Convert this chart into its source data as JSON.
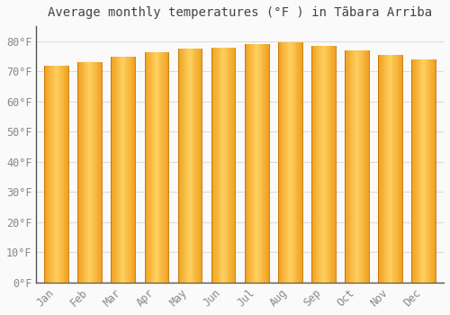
{
  "title": "Average monthly temperatures (°F ) in Tãbara Arriba",
  "months": [
    "Jan",
    "Feb",
    "Mar",
    "Apr",
    "May",
    "Jun",
    "Jul",
    "Aug",
    "Sep",
    "Oct",
    "Nov",
    "Dec"
  ],
  "values": [
    72.0,
    73.0,
    75.0,
    76.5,
    77.5,
    78.0,
    79.0,
    79.5,
    78.5,
    77.0,
    75.5,
    74.0
  ],
  "bar_color_center": "#FFD060",
  "bar_color_edge": "#F0A020",
  "background_color": "#FAFAFA",
  "grid_color": "#DDDDDD",
  "text_color": "#888888",
  "title_color": "#444444",
  "spine_color": "#555555",
  "yticks": [
    0,
    10,
    20,
    30,
    40,
    50,
    60,
    70,
    80
  ],
  "ylim": [
    0,
    85
  ],
  "title_fontsize": 10,
  "tick_fontsize": 8.5
}
